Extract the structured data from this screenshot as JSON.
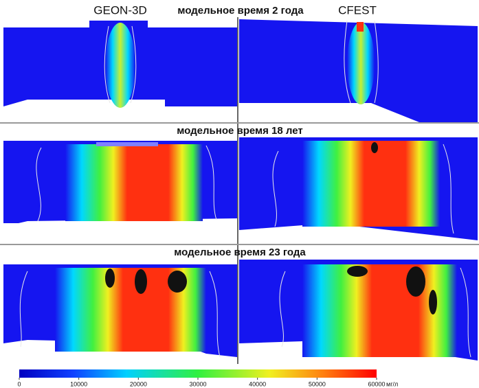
{
  "labels": {
    "left_model": "GEON-3D",
    "right_model": "CFEST",
    "row1": "модельное время 2  года",
    "row2": "модельное время 18 лет",
    "row3": "модельное время 23 года"
  },
  "colorbar": {
    "lim": [
      0,
      60000
    ],
    "ticks": [
      0,
      10000,
      20000,
      30000,
      40000,
      50000,
      60000
    ],
    "unit": "мг/л"
  }
}
